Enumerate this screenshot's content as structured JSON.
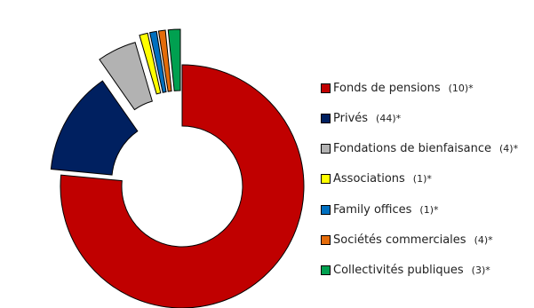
{
  "chart_data": {
    "type": "pie",
    "variant": "exploded-donut",
    "legend_position": "right",
    "slices": [
      {
        "label": "Fonds de pensions",
        "count": "(10)*",
        "value": 76.5,
        "color": "#c00000"
      },
      {
        "label": "Privés",
        "count": "(44)*",
        "value": 13.8,
        "color": "#002060"
      },
      {
        "label": "Fondations de bienfaisance",
        "count": "(4)*",
        "value": 5.2,
        "color": "#b2b2b2"
      },
      {
        "label": "Associations",
        "count": "(1)*",
        "value": 1.1,
        "color": "#ffff00"
      },
      {
        "label": "Family offices",
        "count": "(1)*",
        "value": 0.9,
        "color": "#0070c0"
      },
      {
        "label": "Sociétés commerciales",
        "count": "(4)*",
        "value": 0.9,
        "color": "#e46c0a"
      },
      {
        "label": "Collectivités publiques",
        "count": "(3)*",
        "value": 1.6,
        "color": "#00a050"
      }
    ]
  }
}
